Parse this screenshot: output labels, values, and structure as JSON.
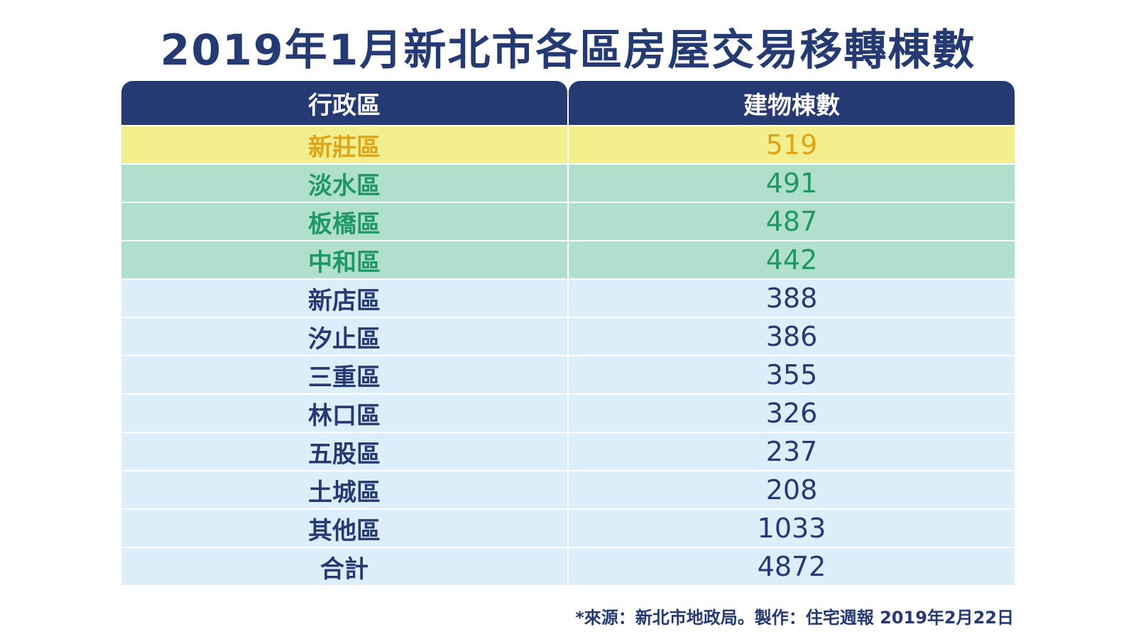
{
  "chart_data": {
    "type": "table",
    "title": "2019年1月新北市各區房屋交易移轉棟數",
    "columns": [
      "行政區",
      "建物棟數"
    ],
    "rows": [
      {
        "district": "新莊區",
        "value": "519",
        "tier": "gold"
      },
      {
        "district": "淡水區",
        "value": "491",
        "tier": "green"
      },
      {
        "district": "板橋區",
        "value": "487",
        "tier": "green"
      },
      {
        "district": "中和區",
        "value": "442",
        "tier": "green"
      },
      {
        "district": "新店區",
        "value": "388",
        "tier": "blue"
      },
      {
        "district": "汐止區",
        "value": "386",
        "tier": "blue"
      },
      {
        "district": "三重區",
        "value": "355",
        "tier": "blue"
      },
      {
        "district": "林口區",
        "value": "326",
        "tier": "blue"
      },
      {
        "district": "五股區",
        "value": "237",
        "tier": "blue"
      },
      {
        "district": "土城區",
        "value": "208",
        "tier": "blue"
      },
      {
        "district": "其他區",
        "value": "1033",
        "tier": "blue"
      },
      {
        "district": "合計",
        "value": "4872",
        "tier": "blue"
      }
    ],
    "source": "*來源：新北市地政局。製作：住宅週報 2019年2月22日"
  },
  "colors": {
    "header_bg": "#253a73",
    "gold_bg": "#f4ef8e",
    "gold_text": "#e0a418",
    "green_bg": "#b1dfcd",
    "green_text": "#1f9866",
    "blue_bg": "#dbeef9",
    "blue_text": "#253a73"
  }
}
